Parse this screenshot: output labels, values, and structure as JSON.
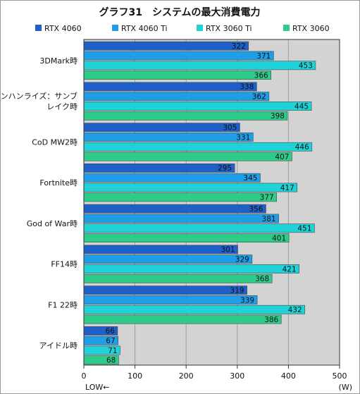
{
  "chart_data": {
    "type": "bar",
    "orientation": "horizontal",
    "title": "グラフ31　システムの最大消費電力",
    "categories": [
      [
        "3DMark時"
      ],
      [
        "モンハンライズ：サンブ",
        "レイク時"
      ],
      [
        "CoD MW2時"
      ],
      [
        "Fortnite時"
      ],
      [
        "God of War時"
      ],
      [
        "FF14時"
      ],
      [
        "F1 22時"
      ],
      [
        "アイドル時"
      ]
    ],
    "series": [
      {
        "name": "RTX 4060",
        "color": "#1f5fc8",
        "values": [
          322,
          338,
          305,
          295,
          356,
          301,
          319,
          66
        ]
      },
      {
        "name": "RTX 4060 Ti",
        "color": "#1e9ee6",
        "values": [
          371,
          362,
          331,
          345,
          381,
          329,
          339,
          67
        ]
      },
      {
        "name": "RTX 3060 Ti",
        "color": "#1ed2d8",
        "values": [
          453,
          445,
          446,
          417,
          451,
          421,
          432,
          71
        ]
      },
      {
        "name": "RTX 3060",
        "color": "#2ecc8a",
        "values": [
          366,
          398,
          407,
          377,
          401,
          368,
          386,
          68
        ]
      }
    ],
    "xlim": [
      0,
      500
    ],
    "xticks": [
      0,
      100,
      200,
      300,
      400,
      500
    ],
    "xlabel_left": "LOW←",
    "xunit": "(W)",
    "grid": true,
    "legend_position": "top",
    "plot_background": "#d3d3d3"
  }
}
